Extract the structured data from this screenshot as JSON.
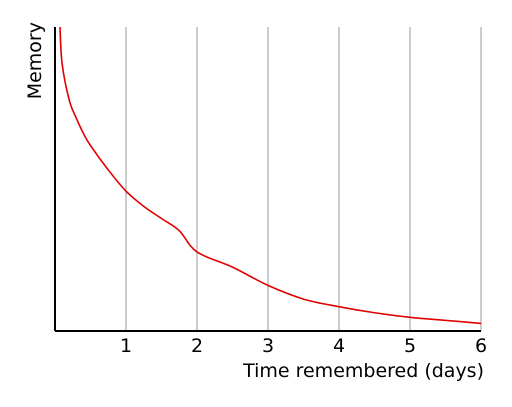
{
  "chart_data": {
    "type": "line",
    "title": "",
    "xlabel": "Time remembered (days)",
    "ylabel": "Memory",
    "xlim": [
      0,
      6
    ],
    "ylim": [
      0,
      1
    ],
    "x_ticks": [
      1,
      2,
      3,
      4,
      5,
      6
    ],
    "x_tick_labels": [
      "1",
      "2",
      "3",
      "4",
      "5",
      "6"
    ],
    "grid": "vertical",
    "y_ticks_shown": false,
    "series": [
      {
        "color": "#e00000",
        "x": [
          0.07,
          0.1,
          0.2,
          0.3,
          0.4,
          0.5,
          0.75,
          1.0,
          1.25,
          1.5,
          1.75,
          2.0,
          2.5,
          3.0,
          3.5,
          4.0,
          4.5,
          5.0,
          5.5,
          6.0
        ],
        "y": [
          1.0,
          0.88,
          0.76,
          0.7,
          0.65,
          0.61,
          0.53,
          0.46,
          0.41,
          0.37,
          0.33,
          0.26,
          0.21,
          0.15,
          0.105,
          0.08,
          0.06,
          0.045,
          0.035,
          0.025
        ]
      }
    ]
  }
}
